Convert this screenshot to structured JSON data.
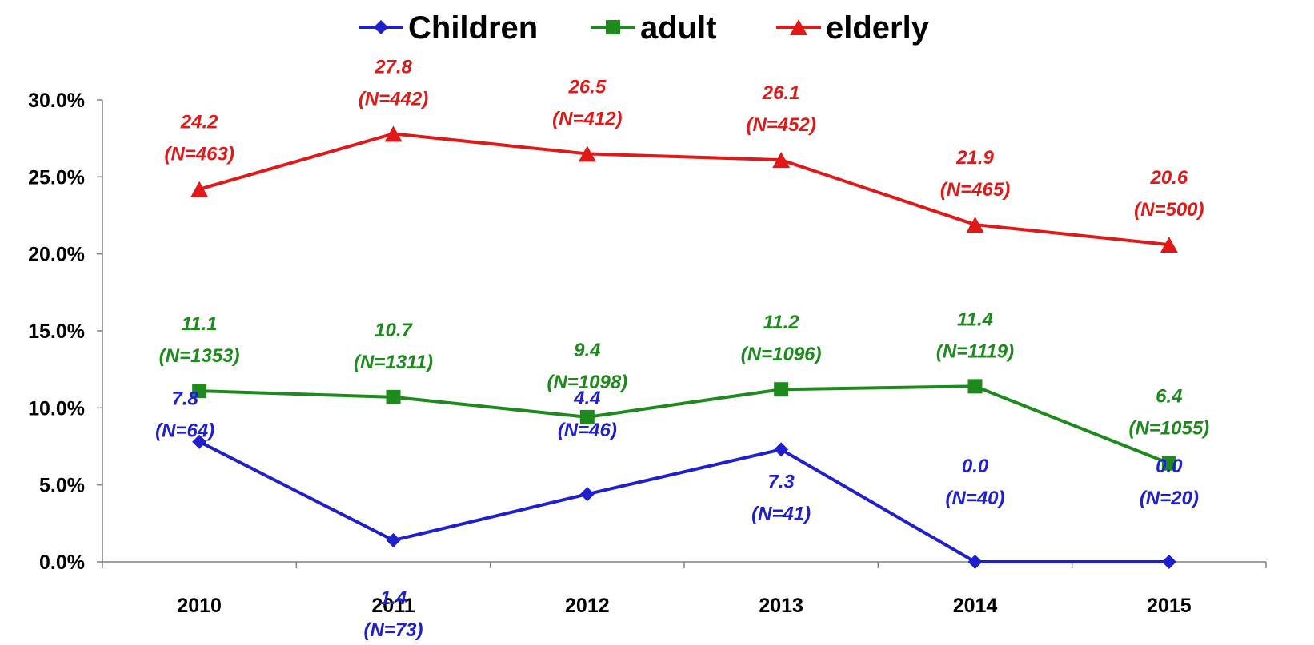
{
  "chart_data": {
    "type": "line",
    "title": "",
    "xlabel": "",
    "ylabel": "",
    "categories": [
      "2010",
      "2011",
      "2012",
      "2013",
      "2014",
      "2015"
    ],
    "ylim": [
      0,
      30
    ],
    "y_ticks": [
      "0.0%",
      "5.0%",
      "10.0%",
      "15.0%",
      "20.0%",
      "25.0%",
      "30.0%"
    ],
    "grid": false,
    "legend_position": "top-center",
    "series": [
      {
        "name": "Children",
        "color": "#1f1fcc",
        "marker": "diamond",
        "values": [
          7.8,
          1.4,
          4.4,
          7.3,
          0.0,
          0.0
        ],
        "value_labels": [
          "7.8",
          "1.4",
          "4.4",
          "7.3",
          "0.0",
          "0.0"
        ],
        "n_labels": [
          "(N=64)",
          "(N=73)",
          "(N=46)",
          "(N=41)",
          "(N=40)",
          "(N=20)"
        ]
      },
      {
        "name": "adult",
        "color": "#1e8a1e",
        "marker": "square",
        "values": [
          11.1,
          10.7,
          9.4,
          11.2,
          11.4,
          6.4
        ],
        "value_labels": [
          "11.1",
          "10.7",
          "9.4",
          "11.2",
          "11.4",
          "6.4"
        ],
        "n_labels": [
          "(N=1353)",
          "(N=1311)",
          "(N=1098)",
          "(N=1096)",
          "(N=1119)",
          "(N=1055)"
        ]
      },
      {
        "name": "elderly",
        "color": "#e01818",
        "marker": "triangle",
        "values": [
          24.2,
          27.8,
          26.5,
          26.1,
          21.9,
          20.6
        ],
        "value_labels": [
          "24.2",
          "27.8",
          "26.5",
          "26.1",
          "21.9",
          "20.6"
        ],
        "n_labels": [
          "(N=463)",
          "(N=442)",
          "(N=412)",
          "(N=452)",
          "(N=465)",
          "(N=500)"
        ]
      }
    ]
  }
}
